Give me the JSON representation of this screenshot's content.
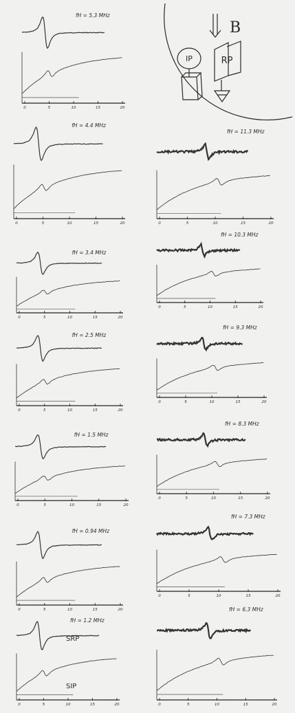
{
  "axis_ticks": [
    "0",
    "5",
    "10",
    "15",
    "20"
  ],
  "diagram": {
    "field": "B",
    "ip": "IP",
    "rp": "RP"
  },
  "panels": [
    {
      "label": "fH = 5.3 MHz"
    },
    {
      "label": "fH = 4.4 MHz"
    },
    {
      "label": "fH = 3.4 MHz"
    },
    {
      "label": "fH = 2.5 MHz"
    },
    {
      "label": "fH = 1.5 MHz"
    },
    {
      "label": "fH = 0.94 MHz"
    },
    {
      "label": "fH = 1.2 MHz",
      "upper_label": "SRP",
      "lower_label": "SIP"
    },
    {
      "label": "fH = 11.3 MHz"
    },
    {
      "label": "fH = 10.3 MHz"
    },
    {
      "label": "fH = 9.3 MHz"
    },
    {
      "label": "fH = 8.3 MHz"
    },
    {
      "label": "fH = 7.3 MHz"
    },
    {
      "label": "fH = 6.3 MHz"
    }
  ]
}
